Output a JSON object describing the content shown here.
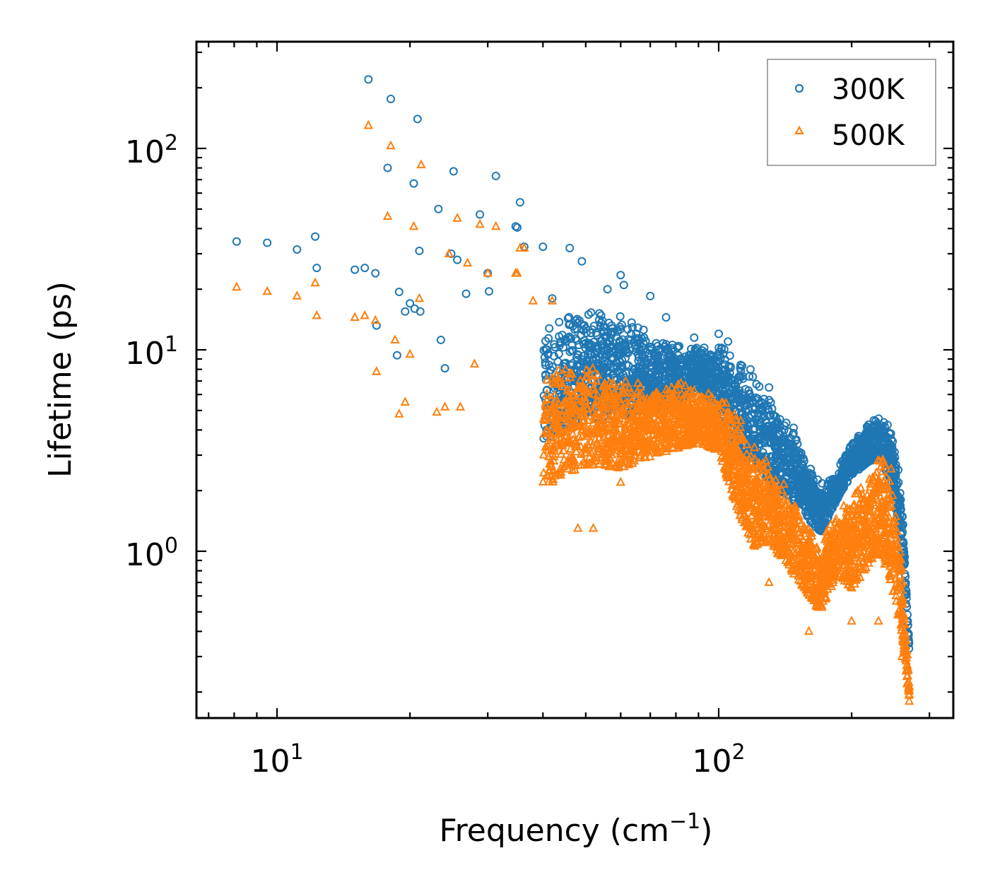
{
  "chart_data": {
    "type": "scatter",
    "xscale": "log",
    "yscale": "log",
    "xlabel": "Frequency (cm",
    "xlabel_sup": "−1",
    "xlabel_end": ")",
    "ylabel": "Lifetime (ps)",
    "xlim": [
      6.7,
      320
    ],
    "ylim": [
      0.16,
      320
    ],
    "x_ticks": [
      {
        "value": 10,
        "base": "10",
        "exp": "1"
      },
      {
        "value": 100,
        "base": "10",
        "exp": "2"
      }
    ],
    "y_ticks": [
      {
        "value": 1,
        "base": "10",
        "exp": "0"
      },
      {
        "value": 10,
        "base": "10",
        "exp": "1"
      },
      {
        "value": 100,
        "base": "10",
        "exp": "2"
      }
    ],
    "legend_position": "top-right",
    "series": [
      {
        "name": "300K",
        "marker": "circle",
        "color": "#1f77b4",
        "x": [
          8.1,
          9.5,
          11.1,
          12.2,
          12.3,
          15.0,
          15.8,
          16.1,
          16.7,
          16.8,
          17.8,
          18.1,
          18.7,
          18.9,
          19.5,
          20.0,
          20.4,
          20.5,
          20.8,
          21.0,
          21.1,
          23.2,
          23.5,
          24.0,
          24.8,
          25.1,
          25.6,
          26.8,
          28.8,
          30.0,
          30.2,
          31.3,
          34.7,
          35.0,
          35.5,
          36.3,
          40.0,
          42.0,
          46.0,
          49.0,
          56.0,
          60.0,
          61.0,
          70.0,
          76.0,
          88.0,
          100.0,
          105.0,
          118.0,
          130.0
        ],
        "y": [
          34.5,
          34.0,
          31.5,
          36.5,
          25.5,
          25.0,
          25.5,
          220.0,
          24.0,
          13.2,
          80.0,
          176.0,
          9.4,
          19.4,
          15.5,
          17.0,
          67.0,
          16.0,
          140.0,
          31.0,
          15.5,
          50.0,
          11.2,
          8.1,
          30.0,
          77.0,
          28.0,
          19.0,
          47.0,
          24.0,
          19.5,
          73.0,
          41.0,
          40.5,
          54.0,
          32.5,
          32.5,
          18.0,
          32.0,
          27.5,
          20.0,
          23.5,
          21.0,
          18.5,
          14.5,
          11.5,
          12.0,
          11.0,
          8.0,
          6.5
        ]
      },
      {
        "name": "500K",
        "marker": "triangle",
        "color": "#ff7f0e",
        "x": [
          8.1,
          9.5,
          11.1,
          12.2,
          12.3,
          15.0,
          15.8,
          16.1,
          16.7,
          16.8,
          17.8,
          18.1,
          18.5,
          18.9,
          19.5,
          20.0,
          20.4,
          21.0,
          21.2,
          23.0,
          24.0,
          24.5,
          25.6,
          26.0,
          27.0,
          28.0,
          28.8,
          30.0,
          31.3,
          34.7,
          35.0,
          35.5,
          36.3,
          38.0,
          42.0,
          45.0,
          48.0,
          52.0,
          60.0,
          75.0,
          100.0,
          130.0,
          160.0,
          200.0,
          230.0,
          260.0,
          267.0,
          270.0
        ],
        "y": [
          20.5,
          19.5,
          18.5,
          21.5,
          14.8,
          14.5,
          14.8,
          130.0,
          14.0,
          7.8,
          46.0,
          103.0,
          11.2,
          4.8,
          5.5,
          9.5,
          41.0,
          18.0,
          83.0,
          4.9,
          5.2,
          30.0,
          45.0,
          5.2,
          27.0,
          8.5,
          42.0,
          24.0,
          41.0,
          24.0,
          24.0,
          32.0,
          32.0,
          17.5,
          17.5,
          8.0,
          1.3,
          1.3,
          2.2,
          5.0,
          3.5,
          0.7,
          0.4,
          0.45,
          0.45,
          0.3,
          0.22,
          0.18
        ]
      }
    ]
  }
}
